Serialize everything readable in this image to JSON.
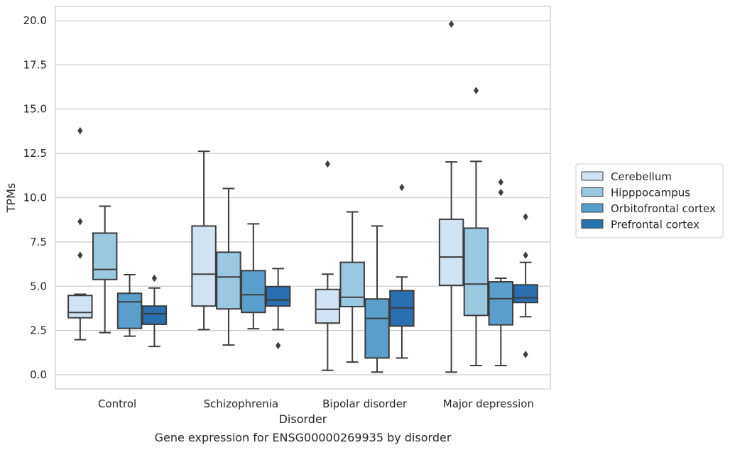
{
  "chart_data": {
    "type": "boxplot",
    "title": "",
    "caption": "Gene expression for ENSG00000269935 by disorder",
    "xlabel": "Disorder",
    "ylabel": "TPMs",
    "ylim": [
      -0.8,
      20.8
    ],
    "yticks": [
      "0.0",
      "2.5",
      "5.0",
      "7.5",
      "10.0",
      "12.5",
      "15.0",
      "17.5",
      "20.0"
    ],
    "grid": "horizontal",
    "legend_position": "right",
    "categories": [
      "Control",
      "Schizophrenia",
      "Bipolar disorder",
      "Major depression"
    ],
    "series": [
      {
        "name": "Cerebellum",
        "color": "#d1e2f2",
        "boxes": [
          {
            "whisker_low": 1.98,
            "q1": 3.22,
            "median": 3.52,
            "q3": 4.48,
            "whisker_high": 4.55,
            "outliers": [
              6.75,
              8.65,
              13.78
            ]
          },
          {
            "whisker_low": 2.55,
            "q1": 3.88,
            "median": 5.68,
            "q3": 8.4,
            "whisker_high": 12.62,
            "outliers": []
          },
          {
            "whisker_low": 0.25,
            "q1": 2.92,
            "median": 3.7,
            "q3": 4.82,
            "whisker_high": 5.68,
            "outliers": [
              11.9
            ]
          },
          {
            "whisker_low": 0.15,
            "q1": 5.05,
            "median": 6.65,
            "q3": 8.78,
            "whisker_high": 12.02,
            "outliers": [
              19.8
            ]
          }
        ]
      },
      {
        "name": "Hipppocampus",
        "color": "#9ac8e0",
        "boxes": [
          {
            "whisker_low": 2.38,
            "q1": 5.38,
            "median": 5.95,
            "q3": 8.0,
            "whisker_high": 9.52,
            "outliers": []
          },
          {
            "whisker_low": 1.68,
            "q1": 3.72,
            "median": 5.52,
            "q3": 6.92,
            "whisker_high": 10.52,
            "outliers": []
          },
          {
            "whisker_low": 0.72,
            "q1": 3.85,
            "median": 4.38,
            "q3": 6.35,
            "whisker_high": 9.2,
            "outliers": []
          },
          {
            "whisker_low": 0.52,
            "q1": 3.35,
            "median": 5.12,
            "q3": 8.28,
            "whisker_high": 12.05,
            "outliers": [
              16.05
            ]
          }
        ]
      },
      {
        "name": "Orbitofrontal cortex",
        "color": "#5a9fcb",
        "boxes": [
          {
            "whisker_low": 2.18,
            "q1": 2.62,
            "median": 4.12,
            "q3": 4.6,
            "whisker_high": 5.65,
            "outliers": []
          },
          {
            "whisker_low": 2.6,
            "q1": 3.52,
            "median": 4.52,
            "q3": 5.88,
            "whisker_high": 8.52,
            "outliers": []
          },
          {
            "whisker_low": 0.15,
            "q1": 0.95,
            "median": 3.18,
            "q3": 4.28,
            "whisker_high": 8.4,
            "outliers": []
          },
          {
            "whisker_low": 0.52,
            "q1": 2.82,
            "median": 4.3,
            "q3": 5.25,
            "whisker_high": 5.45,
            "outliers": [
              10.3,
              10.88
            ]
          }
        ]
      },
      {
        "name": "Prefrontal cortex",
        "color": "#2a6fb0",
        "boxes": [
          {
            "whisker_low": 1.6,
            "q1": 2.85,
            "median": 3.45,
            "q3": 3.88,
            "whisker_high": 4.9,
            "outliers": [
              5.45
            ]
          },
          {
            "whisker_low": 2.55,
            "q1": 3.88,
            "median": 4.22,
            "q3": 4.98,
            "whisker_high": 6.0,
            "outliers": [
              1.65
            ]
          },
          {
            "whisker_low": 0.95,
            "q1": 2.75,
            "median": 3.78,
            "q3": 4.75,
            "whisker_high": 5.52,
            "outliers": [
              10.58
            ]
          },
          {
            "whisker_low": 3.28,
            "q1": 4.08,
            "median": 4.35,
            "q3": 5.08,
            "whisker_high": 6.35,
            "outliers": [
              1.15,
              6.75,
              8.92
            ]
          }
        ]
      }
    ]
  }
}
